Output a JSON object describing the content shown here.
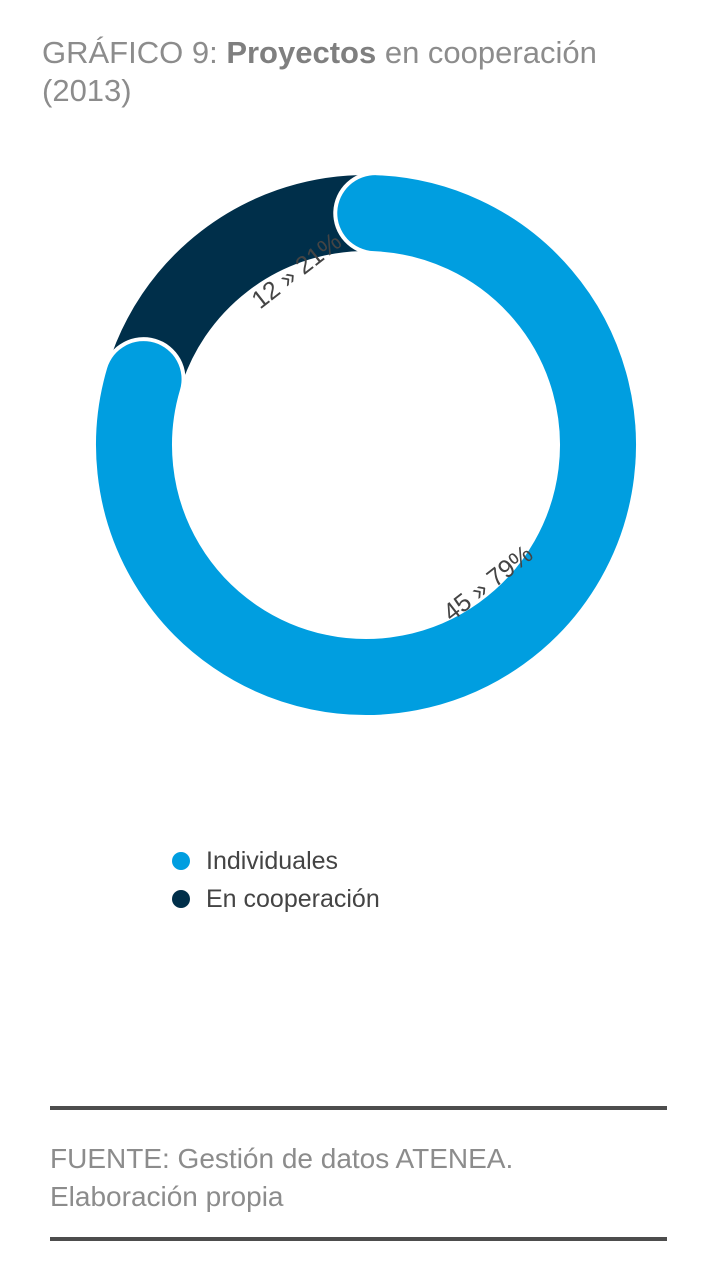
{
  "title": {
    "prefix": "GRÁFICO 9: ",
    "bold": "Proyectos",
    "suffix": " en cooperación (2013)"
  },
  "chart_data": {
    "type": "pie",
    "style": "donut",
    "categories": [
      "Individuales",
      "En cooperación"
    ],
    "values": [
      45,
      12
    ],
    "percentages": [
      79,
      21
    ],
    "labels": [
      "45 » 79%",
      "12 » 21%"
    ],
    "colors": [
      "#009ee0",
      "#002f4a"
    ],
    "legend_position": "bottom"
  },
  "source": {
    "line1": "FUENTE: Gestión de datos ATENEA.",
    "line2": "Elaboración propia"
  }
}
